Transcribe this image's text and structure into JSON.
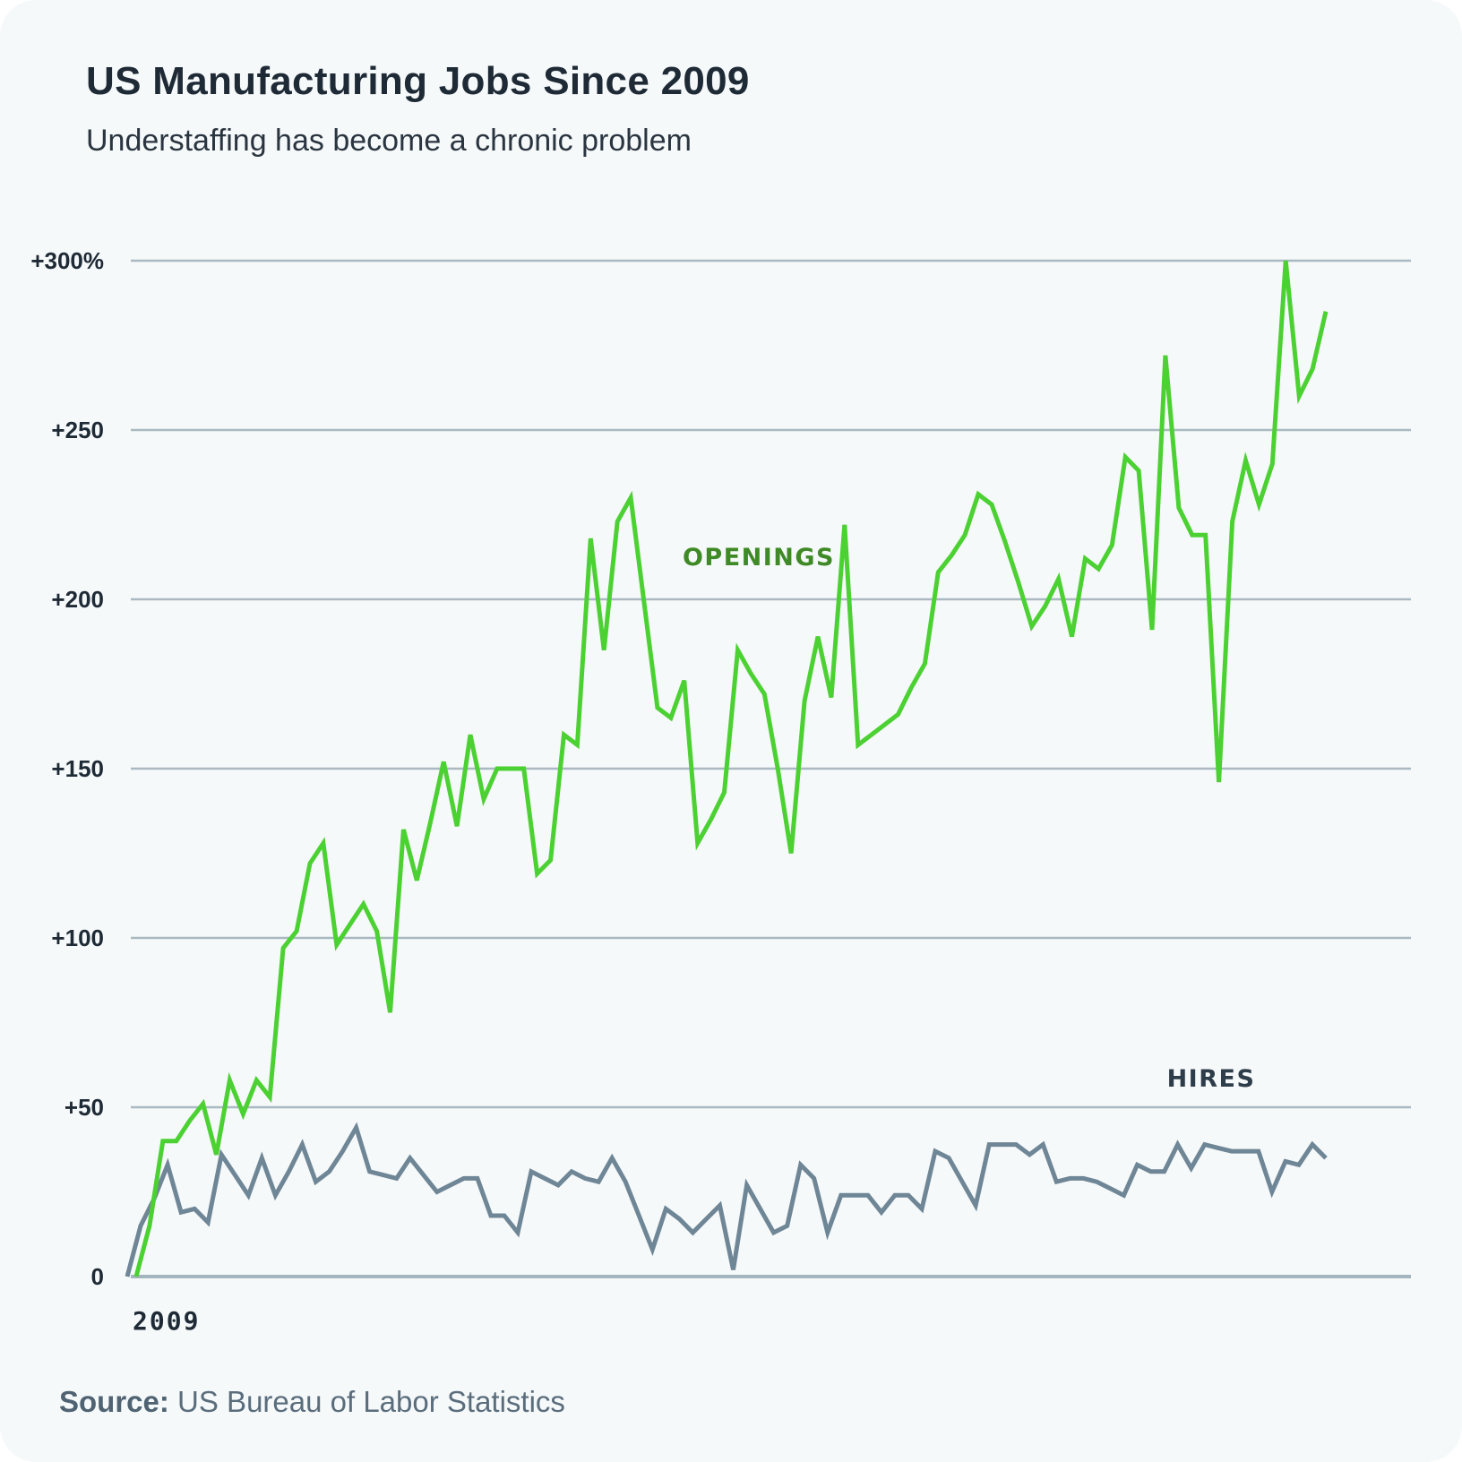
{
  "header": {
    "title": "US Manufacturing Jobs Since 2009",
    "subtitle": "Understaffing has become a chronic problem"
  },
  "footer": {
    "source_label": "Source:",
    "source_text": " US Bureau of Labor Statistics"
  },
  "colors": {
    "openings": "#4cd133",
    "hires": "#6e8696",
    "openings_label": "#3f8a26",
    "hires_label": "#2e3d4a",
    "grid": "#a9b9c2",
    "baseline": "#a3b5bf"
  },
  "chart_data": {
    "type": "line",
    "title": "US Manufacturing Jobs Since 2009",
    "subtitle": "Understaffing has become a chronic problem",
    "xlabel": "",
    "ylabel": "",
    "x_tick_labels": [
      "2009"
    ],
    "y_ticks": [
      0,
      50,
      100,
      150,
      200,
      250,
      300
    ],
    "y_tick_labels": [
      "0",
      "+50",
      "+100",
      "+150",
      "+200",
      "+250",
      "+300%"
    ],
    "ylim": [
      0,
      300
    ],
    "grid": true,
    "series": [
      {
        "name": "OPENINGS",
        "values": [
          0,
          15,
          40,
          40,
          46,
          51,
          36,
          58,
          48,
          58,
          53,
          97,
          102,
          122,
          128,
          98,
          104,
          110,
          102,
          78,
          132,
          117,
          134,
          152,
          133,
          160,
          141,
          150,
          150,
          150,
          119,
          123,
          160,
          157,
          218,
          185,
          223,
          230,
          199,
          168,
          165,
          176,
          128,
          135,
          143,
          185,
          178,
          172,
          150,
          125,
          170,
          189,
          171,
          222,
          157,
          160,
          163,
          166,
          174,
          181,
          208,
          213,
          219,
          231,
          228,
          217,
          205,
          192,
          198,
          206,
          189,
          212,
          209,
          216,
          242,
          238,
          191,
          272,
          227,
          219,
          219,
          146,
          223,
          241,
          228,
          240,
          300,
          260,
          268,
          285
        ]
      },
      {
        "name": "HIRES",
        "values": [
          0,
          15,
          23,
          33,
          19,
          20,
          16,
          36,
          30,
          24,
          35,
          24,
          31,
          39,
          28,
          31,
          37,
          44,
          31,
          30,
          29,
          35,
          30,
          25,
          27,
          29,
          29,
          18,
          18,
          13,
          31,
          29,
          27,
          31,
          29,
          28,
          35,
          28,
          18,
          8,
          20,
          17,
          13,
          17,
          21,
          2,
          27,
          20,
          13,
          15,
          33,
          29,
          13,
          24,
          24,
          24,
          19,
          24,
          24,
          20,
          37,
          35,
          28,
          21,
          39,
          39,
          39,
          36,
          39,
          28,
          29,
          29,
          28,
          26,
          24,
          33,
          31,
          31,
          39,
          32,
          39,
          38,
          37,
          37,
          37,
          25,
          34,
          33,
          39,
          35
        ]
      }
    ],
    "annotations": [
      "OPENINGS",
      "HIRES"
    ]
  }
}
